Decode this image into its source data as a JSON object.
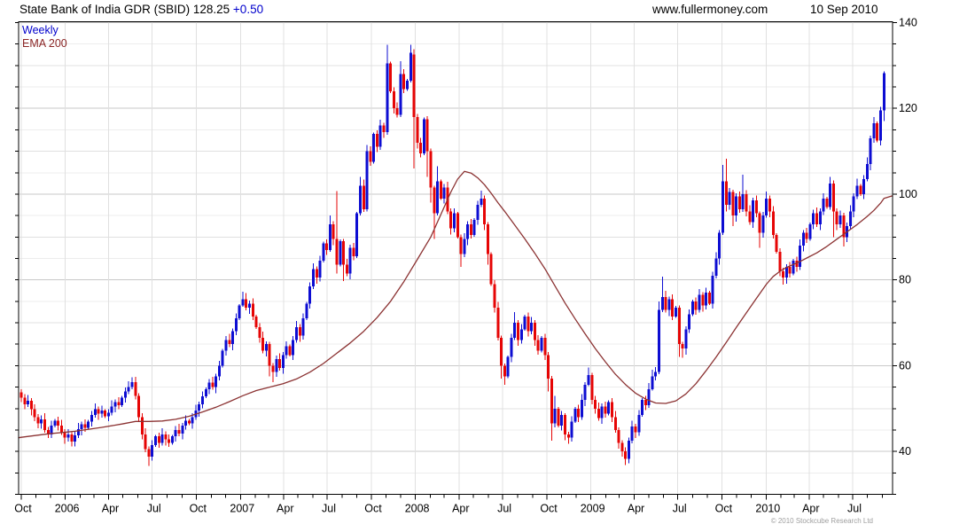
{
  "header": {
    "title": "State Bank of India GDR (SBID)",
    "price": "128.25",
    "change": "+0.50",
    "website": "www.fullermoney.com",
    "date": "10 Sep 2010"
  },
  "legend": {
    "series1_label": "Weekly",
    "series2_label": "EMA 200"
  },
  "footer": {
    "copyright": "© 2010 Stockcube Research Ltd"
  },
  "colors": {
    "up_candle": "#0d0dd2",
    "down_candle": "#e60505",
    "ema_line": "#8b3232",
    "legend_weekly": "#0000cc",
    "legend_ema": "#8b2626",
    "grid_minor": "#ededed",
    "grid_mid": "#e0e0e0",
    "grid_major": "#c9c9c9",
    "frame": "#000000",
    "change_text": "#0000cc"
  },
  "chart_data": {
    "type": "candlestick",
    "title": "State Bank of India GDR (SBID) weekly with 200-period EMA",
    "ylim": [
      30.0,
      140.2
    ],
    "y_axis": {
      "major_labels": [
        40,
        60,
        80,
        100,
        120,
        140
      ],
      "minor_step": 5,
      "minor_from": 30,
      "minor_to": 140,
      "side": "right"
    },
    "x_axis": {
      "quarter_ticks": [
        [
          "Oct",
          0
        ],
        [
          "2006",
          13.1
        ],
        [
          "Apr",
          26.0
        ],
        [
          "Jul",
          39.0
        ],
        [
          "Oct",
          52.1
        ],
        [
          "2007",
          65.3
        ],
        [
          "Apr",
          78.1
        ],
        [
          "Jul",
          91.1
        ],
        [
          "Oct",
          104.3
        ],
        [
          "2008",
          117.4
        ],
        [
          "Apr",
          130.4
        ],
        [
          "Jul",
          143.4
        ],
        [
          "Oct",
          156.6
        ],
        [
          "2009",
          169.7
        ],
        [
          "Apr",
          182.6
        ],
        [
          "Jul",
          195.6
        ],
        [
          "Oct",
          208.7
        ],
        [
          "2010",
          221.9
        ],
        [
          "Apr",
          234.7
        ],
        [
          "Jul",
          247.7
        ]
      ],
      "month_tick_weeks": [
        0,
        4.4,
        8.7,
        13.1,
        17.6,
        21.6,
        26.0,
        30.3,
        34.7,
        39.0,
        43.4,
        47.9,
        52.1,
        56.6,
        60.9,
        65.3,
        69.7,
        73.7,
        78.1,
        82.4,
        86.9,
        91.1,
        95.6,
        100.0,
        104.3,
        108.7,
        113.0,
        117.4,
        121.9,
        126.0,
        130.4,
        134.7,
        139.1,
        143.4,
        147.9,
        152.3,
        156.6,
        161.0,
        165.3,
        169.7,
        174.1,
        178.1,
        182.6,
        186.9,
        191.3,
        195.6,
        200.0,
        204.4,
        208.7,
        213.1,
        217.4,
        221.9,
        226.3,
        230.3,
        234.7,
        239.0,
        243.4,
        247.7,
        252.1,
        256.6
      ]
    },
    "series": [
      {
        "name": "Weekly",
        "type": "candles_weekly_ohlc",
        "closes": [
          52.5,
          51,
          51.8,
          49.8,
          48,
          46.5,
          47.5,
          45,
          44,
          46,
          47.2,
          46,
          44.5,
          43.2,
          44,
          42.3,
          43.8,
          45.2,
          46.3,
          45.5,
          47,
          48.5,
          49.8,
          48.8,
          49.5,
          48.2,
          49,
          50.5,
          51.5,
          50.8,
          52.5,
          54,
          55,
          56.2,
          53,
          48,
          44,
          40.5,
          38.8,
          41.5,
          43.5,
          42,
          44,
          42.8,
          42,
          43.5,
          45,
          44.2,
          46,
          47.2,
          46.5,
          48,
          49.5,
          51,
          52.8,
          54.5,
          56,
          55,
          57.5,
          60,
          63.5,
          66,
          65,
          68,
          71,
          74,
          75.5,
          73.5,
          74.5,
          71.5,
          69,
          66.5,
          63.5,
          65,
          60,
          58.5,
          61.5,
          59.5,
          62.5,
          64.5,
          62.5,
          66,
          69,
          67,
          71,
          74.5,
          78.5,
          82.5,
          80.5,
          84.5,
          88.5,
          87,
          93,
          89.5,
          83.5,
          89,
          83.5,
          81.5,
          87.5,
          85.5,
          95.5,
          102,
          96.5,
          110,
          107.5,
          114,
          111,
          116,
          114.5,
          130.5,
          124,
          120,
          118.5,
          128,
          124.5,
          126.5,
          133,
          118,
          112,
          109.5,
          117.5,
          110,
          101.5,
          95.5,
          103,
          99,
          101.5,
          96,
          92,
          95.5,
          90,
          86,
          89.5,
          93,
          90.5,
          94,
          97.5,
          99,
          93,
          86,
          79,
          73.5,
          66.5,
          60,
          57.5,
          62,
          66.5,
          70,
          66,
          68.5,
          71.5,
          68,
          70,
          66,
          63.5,
          66.5,
          62.5,
          57,
          46.5,
          50,
          46,
          48.5,
          44,
          43.2,
          47,
          50,
          48,
          52,
          55.5,
          57.8,
          52,
          50,
          47.8,
          50.5,
          48.8,
          51.5,
          48,
          45,
          42,
          40,
          38.3,
          42.5,
          45.8,
          44.5,
          48.5,
          52,
          50.8,
          54.5,
          57.5,
          58.5,
          73,
          76,
          73,
          75.5,
          71.5,
          73.5,
          65,
          64,
          68.5,
          72,
          75,
          73,
          76.5,
          74,
          77,
          74.5,
          81,
          85,
          91,
          103,
          97.5,
          100.5,
          95,
          99.5,
          96.5,
          100,
          96,
          93.5,
          98.5,
          95.5,
          91,
          95,
          99,
          96,
          90.5,
          86.5,
          82,
          80.5,
          83,
          81.5,
          84.5,
          83,
          88,
          91,
          89.5,
          93,
          95.5,
          93,
          96,
          99,
          97,
          102.5,
          96,
          93,
          95,
          90,
          92.5,
          96,
          99.5,
          102,
          100,
          103.5,
          107,
          113,
          116.5,
          112.5,
          119.5,
          128.25
        ],
        "opens_override": {
          "0": 53.8,
          "117": 132.5
        },
        "wick_overrides": {
          "0": [
            54.5,
            51.5
          ],
          "5": [
            48.7,
            45.4
          ],
          "8": [
            45.7,
            43.1
          ],
          "15": [
            44.5,
            41.2
          ],
          "33": [
            57.3,
            54.5
          ],
          "35": [
            53.6,
            46.9
          ],
          "38": [
            41.2,
            36.6
          ],
          "66": [
            77.2,
            73.7
          ],
          "74": [
            65.6,
            57.5
          ],
          "75": [
            60.6,
            56.2
          ],
          "92": [
            95.0,
            86.5
          ],
          "94": [
            100.7,
            81.5
          ],
          "96": [
            89.5,
            79.7
          ],
          "101": [
            104.0,
            95.0
          ],
          "103": [
            111.5,
            96.0
          ],
          "109": [
            134.8,
            113.8
          ],
          "113": [
            131.0,
            118.0
          ],
          "116": [
            134.8,
            126.0
          ],
          "117": [
            133.8,
            106.0
          ],
          "121": [
            118.2,
            104.0
          ],
          "122": [
            110.6,
            98.0
          ],
          "123": [
            102.0,
            89.5
          ],
          "124": [
            106.5,
            95.0
          ],
          "131": [
            90.6,
            83.0
          ],
          "137": [
            100.8,
            97.0
          ],
          "139": [
            93.5,
            83.5
          ],
          "143": [
            67.0,
            57.0
          ],
          "144": [
            60.5,
            55.5
          ],
          "147": [
            72.5,
            66.0
          ],
          "157": [
            63.2,
            54.0
          ],
          "158": [
            57.6,
            42.5
          ],
          "159": [
            53.0,
            45.6
          ],
          "162": [
            48.9,
            42.6
          ],
          "163": [
            44.6,
            41.8
          ],
          "169": [
            59.6,
            55.2
          ],
          "170": [
            58.3,
            51.0
          ],
          "179": [
            42.6,
            38.8
          ],
          "180": [
            41.0,
            36.8
          ],
          "181": [
            43.2,
            37.2
          ],
          "188": [
            59.0,
            54.2
          ],
          "190": [
            75.0,
            58.0
          ],
          "191": [
            80.8,
            72.5
          ],
          "196": [
            74.0,
            62.0
          ],
          "197": [
            65.6,
            61.8
          ],
          "209": [
            106.8,
            90.5
          ],
          "210": [
            108.3,
            96.0
          ],
          "212": [
            101.0,
            92.5
          ],
          "215": [
            104.5,
            95.8
          ],
          "220": [
            96.0,
            87.5
          ],
          "222": [
            100.6,
            94.5
          ],
          "227": [
            82.8,
            78.9
          ],
          "241": [
            104.0,
            96.4
          ],
          "242": [
            103.2,
            90.0
          ],
          "245": [
            95.6,
            87.8
          ],
          "249": [
            103.6,
            98.8
          ],
          "252": [
            108.6,
            103.0
          ],
          "254": [
            118.0,
            112.0
          ],
          "257": [
            128.6,
            117.0
          ]
        }
      },
      {
        "name": "EMA 200",
        "type": "line",
        "points": [
          [
            -0.8,
            43.2
          ],
          [
            0,
            43.3
          ],
          [
            8,
            44.1
          ],
          [
            16,
            44.7
          ],
          [
            24,
            45.6
          ],
          [
            30,
            46.4
          ],
          [
            34,
            47.0
          ],
          [
            38,
            47.0
          ],
          [
            42,
            47.1
          ],
          [
            46,
            47.5
          ],
          [
            50,
            48.2
          ],
          [
            54,
            49.2
          ],
          [
            58,
            50.3
          ],
          [
            62,
            51.6
          ],
          [
            66,
            53.0
          ],
          [
            70,
            54.2
          ],
          [
            74,
            55.0
          ],
          [
            78,
            55.8
          ],
          [
            82,
            56.9
          ],
          [
            86,
            58.5
          ],
          [
            90,
            60.5
          ],
          [
            94,
            62.9
          ],
          [
            98,
            65.3
          ],
          [
            102,
            68.0
          ],
          [
            106,
            71.2
          ],
          [
            110,
            75.0
          ],
          [
            114,
            79.6
          ],
          [
            118,
            84.8
          ],
          [
            122,
            90.0
          ],
          [
            126,
            97.0
          ],
          [
            128,
            100.5
          ],
          [
            130,
            103.5
          ],
          [
            132,
            105.3
          ],
          [
            134,
            104.9
          ],
          [
            136,
            103.8
          ],
          [
            138,
            102.2
          ],
          [
            140,
            100.2
          ],
          [
            142,
            98.0
          ],
          [
            144,
            96.0
          ],
          [
            147,
            92.8
          ],
          [
            150,
            89.6
          ],
          [
            153,
            86.2
          ],
          [
            156,
            82.6
          ],
          [
            159,
            78.6
          ],
          [
            162,
            74.6
          ],
          [
            165,
            70.9
          ],
          [
            168,
            67.4
          ],
          [
            171,
            64.0
          ],
          [
            174,
            60.9
          ],
          [
            177,
            58.0
          ],
          [
            180,
            55.6
          ],
          [
            183,
            53.6
          ],
          [
            186,
            52.2
          ],
          [
            189,
            51.3
          ],
          [
            192,
            51.2
          ],
          [
            195,
            51.8
          ],
          [
            198,
            53.4
          ],
          [
            201,
            55.8
          ],
          [
            204,
            58.8
          ],
          [
            207,
            62.0
          ],
          [
            210,
            65.4
          ],
          [
            213,
            68.9
          ],
          [
            216,
            72.3
          ],
          [
            219,
            75.7
          ],
          [
            222,
            79.0
          ],
          [
            224,
            80.8
          ],
          [
            226,
            82.0
          ],
          [
            228,
            82.9
          ],
          [
            230,
            83.6
          ],
          [
            232,
            84.3
          ],
          [
            234,
            85.1
          ],
          [
            237,
            86.3
          ],
          [
            240,
            87.8
          ],
          [
            243,
            89.5
          ],
          [
            246,
            91.2
          ],
          [
            249,
            92.9
          ],
          [
            252,
            94.8
          ],
          [
            254,
            96.2
          ],
          [
            256,
            97.9
          ],
          [
            257,
            99.0
          ],
          [
            259.5,
            99.6
          ]
        ]
      }
    ]
  }
}
